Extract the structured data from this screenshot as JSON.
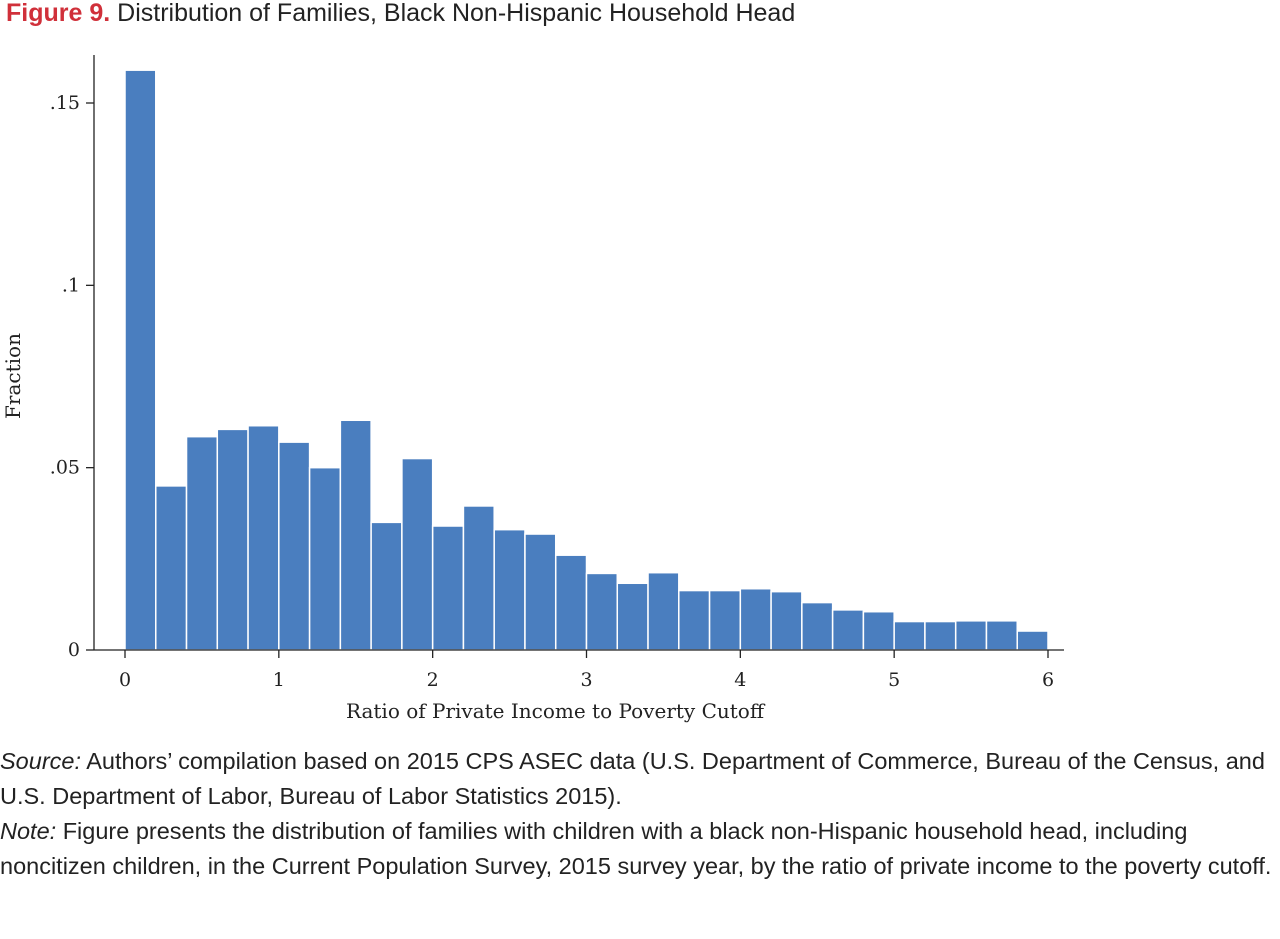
{
  "figure": {
    "number_label": "Figure 9.",
    "title": "Distribution of Families, Black Non-Hispanic Household Head"
  },
  "chart_data": {
    "type": "bar",
    "title": "Distribution of Families, Black Non-Hispanic Household Head",
    "xlabel": "Ratio of Private Income to Poverty Cutoff",
    "ylabel": "Fraction",
    "bin_width": 0.2,
    "bin_starts": [
      0,
      0.2,
      0.4,
      0.6,
      0.8,
      1.0,
      1.2,
      1.4,
      1.6,
      1.8,
      2.0,
      2.2,
      2.4,
      2.6,
      2.8,
      3.0,
      3.2,
      3.4,
      3.6,
      3.8,
      4.0,
      4.2,
      4.4,
      4.6,
      4.8,
      5.0,
      5.2,
      5.4,
      5.6,
      5.8
    ],
    "values": [
      0.159,
      0.045,
      0.0585,
      0.0605,
      0.0615,
      0.057,
      0.05,
      0.063,
      0.035,
      0.0525,
      0.034,
      0.0395,
      0.033,
      0.0318,
      0.026,
      0.021,
      0.0183,
      0.0212,
      0.0163,
      0.0163,
      0.0168,
      0.016,
      0.013,
      0.011,
      0.0105,
      0.0078,
      0.0078,
      0.008,
      0.008,
      0.0052
    ],
    "xlim": [
      0,
      6
    ],
    "ylim": [
      0,
      0.16
    ],
    "x_ticks": [
      0,
      1,
      2,
      3,
      4,
      5,
      6
    ],
    "x_tick_labels": [
      "0",
      "1",
      "2",
      "3",
      "4",
      "5",
      "6"
    ],
    "y_ticks": [
      0,
      0.05,
      0.1,
      0.15
    ],
    "y_tick_labels": [
      "0",
      ".05",
      ".1",
      ".15"
    ],
    "grid": false,
    "bar_color": "#4a7ebf"
  },
  "caption": {
    "source_label": "Source:",
    "source_text": " Authors’ compilation based on 2015 CPS ASEC data (U.S. Department of Commerce, Bureau of the Census, and U.S. Department of Labor, Bureau of Labor Statistics 2015).",
    "note_label": "Note:",
    "note_text": " Figure presents the distribution of families with children with a black non-Hispanic household head, including noncitizen children, in the Current Population Survey, 2015 survey year, by the ratio of private income to the poverty cutoff."
  }
}
